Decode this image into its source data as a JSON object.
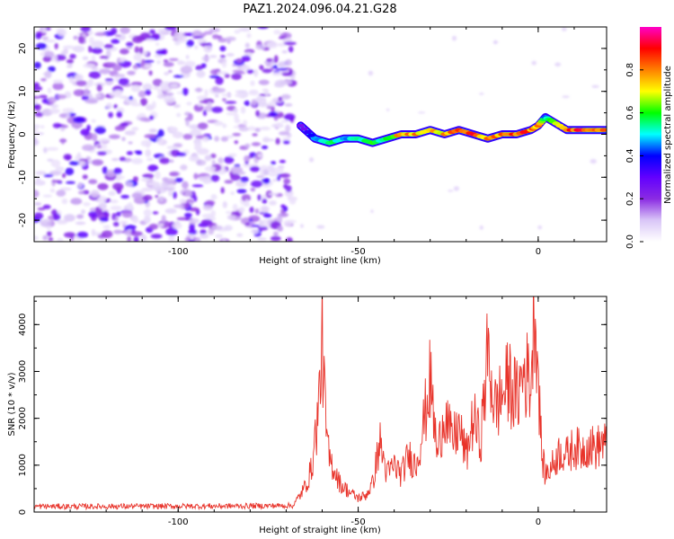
{
  "title": "PAZ1.2024.096.04.21.G28",
  "chart_data": [
    {
      "type": "heatmap",
      "xlabel": "Height of straight line (km)",
      "ylabel": "Frequency (Hz)",
      "xlim": [
        -140,
        19
      ],
      "ylim": [
        -25,
        25
      ],
      "xticks": [
        -100,
        -50,
        0
      ],
      "yticks": [
        -20,
        -10,
        0,
        10,
        20
      ],
      "colorbar": {
        "label": "Normalized spectral amplitude",
        "range": [
          0,
          1
        ],
        "ticks": [
          0.0,
          0.2,
          0.4,
          0.6,
          0.8
        ],
        "tick_labels": [
          "0.0",
          "0.2",
          "0.4",
          "0.6",
          "0.8"
        ],
        "colormap": [
          "#ffffff",
          "#d9c6f7",
          "#8a2be2",
          "#6200ff",
          "#0000ff",
          "#00ffff",
          "#00ff00",
          "#ffff00",
          "#ff8000",
          "#ff0000",
          "#ff00c8"
        ]
      },
      "ridge": {
        "x": [
          -66,
          -62,
          -58,
          -54,
          -50,
          -46,
          -42,
          -38,
          -34,
          -30,
          -26,
          -22,
          -18,
          -14,
          -10,
          -6,
          -2,
          0,
          2,
          4,
          8,
          12,
          16,
          19
        ],
        "y": [
          2,
          -1,
          -2,
          -1,
          -1,
          -2,
          -1,
          0,
          0,
          1,
          0,
          1,
          0,
          -1,
          0,
          0,
          1,
          2,
          4,
          3,
          1,
          1,
          1,
          1
        ],
        "amplitude": [
          0.25,
          0.45,
          0.6,
          0.5,
          0.55,
          0.6,
          0.6,
          0.85,
          0.8,
          0.75,
          0.8,
          0.85,
          0.9,
          0.8,
          0.85,
          0.9,
          0.85,
          0.8,
          0.5,
          0.7,
          0.9,
          0.9,
          0.85,
          0.8
        ]
      },
      "noise_region": {
        "x": [
          -140,
          -68
        ],
        "amplitude_max": 0.3
      }
    },
    {
      "type": "line",
      "xlabel": "Height of straight line (km)",
      "ylabel": "SNR (10 * v/v)",
      "xlim": [
        -140,
        19
      ],
      "ylim": [
        0,
        4600
      ],
      "xticks": [
        -100,
        -50,
        0
      ],
      "yticks": [
        0,
        1000,
        2000,
        3000,
        4000
      ],
      "color": "#e8332a",
      "series": [
        {
          "x": [
            -140,
            -120,
            -100,
            -80,
            -68,
            -65,
            -63,
            -61,
            -60,
            -59,
            -58,
            -57,
            -56,
            -55,
            -52,
            -50,
            -48,
            -46,
            -44,
            -42,
            -40,
            -38,
            -36,
            -34,
            -32,
            -30,
            -28,
            -26,
            -24,
            -22,
            -20,
            -18,
            -16,
            -14,
            -12,
            -10,
            -8,
            -6,
            -4,
            -2,
            -1,
            0,
            1,
            2,
            4,
            6,
            8,
            10,
            12,
            14,
            16,
            18,
            19
          ],
          "y": [
            120,
            120,
            125,
            130,
            140,
            500,
            900,
            2200,
            3750,
            1800,
            1100,
            1000,
            800,
            600,
            400,
            300,
            350,
            600,
            1500,
            800,
            1000,
            800,
            1200,
            1000,
            1800,
            2800,
            1200,
            2200,
            1500,
            1800,
            1200,
            2000,
            1500,
            3400,
            2200,
            2500,
            2800,
            2400,
            3000,
            2800,
            4600,
            3000,
            1200,
            800,
            1000,
            1300,
            1200,
            1400,
            1300,
            1450,
            1350,
            1500,
            1400
          ]
        }
      ]
    }
  ]
}
